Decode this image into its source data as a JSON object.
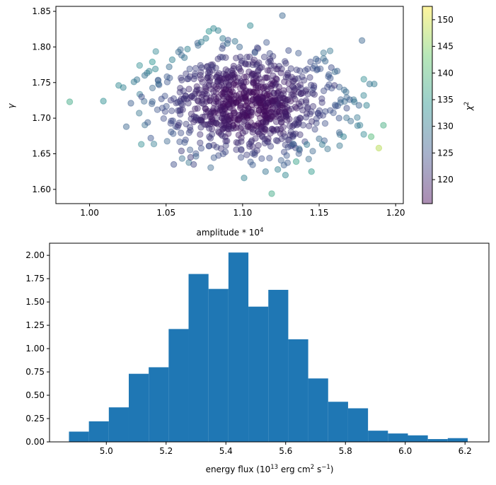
{
  "chart_data": [
    {
      "type": "scatter",
      "title": "",
      "xlabel": "amplitude * 10",
      "xlabel_sup": "4",
      "ylabel": "γ",
      "xlim": [
        0.978,
        1.205
      ],
      "ylim": [
        1.58,
        1.857
      ],
      "xticks": [
        "1.00",
        "1.05",
        "1.10",
        "1.15",
        "1.20"
      ],
      "xtick_values": [
        1.0,
        1.05,
        1.1,
        1.15,
        1.2
      ],
      "yticks": [
        "1.60",
        "1.65",
        "1.70",
        "1.75",
        "1.80",
        "1.85"
      ],
      "ytick_values": [
        1.6,
        1.65,
        1.7,
        1.75,
        1.8,
        1.85
      ],
      "colorbar": {
        "label": "χ",
        "label_sup": "2",
        "range": [
          115.5,
          152.5
        ],
        "ticks": [
          "120",
          "125",
          "130",
          "135",
          "140",
          "145",
          "150"
        ],
        "tick_values": [
          120,
          125,
          130,
          135,
          140,
          145,
          150
        ],
        "colormap": [
          "#440154",
          "#3b528b",
          "#21918c",
          "#5ec962",
          "#fde725"
        ]
      },
      "points": [
        [
          0.987,
          1.723,
          137
        ],
        [
          1.009,
          1.724,
          133
        ],
        [
          1.019,
          1.746,
          132
        ],
        [
          1.022,
          1.743,
          131
        ],
        [
          1.024,
          1.688,
          127
        ],
        [
          1.027,
          1.721,
          126
        ],
        [
          1.029,
          1.751,
          130
        ],
        [
          1.031,
          1.754,
          129
        ],
        [
          1.034,
          1.73,
          124
        ],
        [
          1.036,
          1.76,
          129
        ],
        [
          1.038,
          1.694,
          126
        ],
        [
          1.039,
          1.766,
          131
        ],
        [
          1.04,
          1.672,
          125
        ],
        [
          1.041,
          1.779,
          134
        ],
        [
          1.043,
          1.769,
          132
        ],
        [
          1.045,
          1.748,
          128
        ],
        [
          1.047,
          1.727,
          124
        ],
        [
          1.052,
          1.772,
          128
        ],
        [
          1.054,
          1.782,
          131
        ],
        [
          1.055,
          1.635,
          124
        ],
        [
          1.058,
          1.69,
          121
        ],
        [
          1.06,
          1.654,
          122
        ],
        [
          1.062,
          1.785,
          129
        ],
        [
          1.064,
          1.797,
          131
        ],
        [
          1.066,
          1.645,
          122
        ],
        [
          1.068,
          1.635,
          123
        ],
        [
          1.073,
          1.807,
          130
        ],
        [
          1.076,
          1.812,
          131
        ],
        [
          1.078,
          1.822,
          134
        ],
        [
          1.081,
          1.826,
          132
        ],
        [
          1.084,
          1.823,
          131
        ],
        [
          1.087,
          1.812,
          130
        ],
        [
          1.09,
          1.805,
          128
        ],
        [
          1.095,
          1.808,
          129
        ],
        [
          1.098,
          1.8,
          127
        ],
        [
          1.101,
          1.616,
          131
        ],
        [
          1.105,
          1.83,
          132
        ],
        [
          1.108,
          1.792,
          126
        ],
        [
          1.115,
          1.625,
          129
        ],
        [
          1.119,
          1.594,
          137
        ],
        [
          1.123,
          1.628,
          131
        ],
        [
          1.126,
          1.844,
          127
        ],
        [
          1.128,
          1.62,
          132
        ],
        [
          1.13,
          1.795,
          124
        ],
        [
          1.133,
          1.664,
          127
        ],
        [
          1.135,
          1.639,
          136
        ],
        [
          1.137,
          1.657,
          128
        ],
        [
          1.142,
          1.663,
          130
        ],
        [
          1.145,
          1.625,
          135
        ],
        [
          1.148,
          1.783,
          126
        ],
        [
          1.15,
          1.671,
          128
        ],
        [
          1.152,
          1.663,
          130
        ],
        [
          1.154,
          1.78,
          127
        ],
        [
          1.158,
          1.771,
          124
        ],
        [
          1.16,
          1.746,
          122
        ],
        [
          1.163,
          1.7,
          125
        ],
        [
          1.166,
          1.674,
          131
        ],
        [
          1.168,
          1.714,
          124
        ],
        [
          1.17,
          1.726,
          126
        ],
        [
          1.173,
          1.723,
          129
        ],
        [
          1.176,
          1.718,
          127
        ],
        [
          1.178,
          1.809,
          127
        ],
        [
          1.181,
          1.718,
          131
        ],
        [
          1.183,
          1.748,
          129
        ],
        [
          1.184,
          1.674,
          140
        ],
        [
          1.186,
          1.748,
          130
        ],
        [
          1.189,
          1.658,
          148
        ],
        [
          1.192,
          1.69,
          138
        ]
      ]
    },
    {
      "type": "histogram",
      "title": "",
      "xlabel": "energy flux (10",
      "xlabel_exp1": "13",
      "xlabel_mid": " erg cm",
      "xlabel_exp2": "2",
      "xlabel_mid2": " s",
      "xlabel_exp3": "−1",
      "xlabel_end": ")",
      "ylabel": "",
      "xlim": [
        4.81,
        6.28
      ],
      "ylim": [
        0,
        2.13
      ],
      "xticks": [
        "5.0",
        "5.2",
        "5.4",
        "5.6",
        "5.8",
        "6.0",
        "6.2"
      ],
      "xtick_values": [
        5.0,
        5.2,
        5.4,
        5.6,
        5.8,
        6.0,
        6.2
      ],
      "yticks": [
        "0.00",
        "0.25",
        "0.50",
        "0.75",
        "1.00",
        "1.25",
        "1.50",
        "1.75",
        "2.00"
      ],
      "ytick_values": [
        0.0,
        0.25,
        0.5,
        0.75,
        1.0,
        1.25,
        1.5,
        1.75,
        2.0
      ],
      "bar_color": "#1f77b4",
      "bins": [
        4.875,
        4.9417,
        5.0084,
        5.0751,
        5.1418,
        5.2085,
        5.2752,
        5.3419,
        5.4086,
        5.4753,
        5.542,
        5.6087,
        5.6754,
        5.7421,
        5.8088,
        5.8755,
        5.9422,
        6.0089,
        6.0756,
        6.1423,
        6.209
      ],
      "values": [
        0.11,
        0.22,
        0.37,
        0.73,
        0.8,
        1.21,
        1.8,
        1.64,
        2.03,
        1.45,
        1.63,
        1.1,
        0.68,
        0.43,
        0.36,
        0.12,
        0.09,
        0.07,
        0.03,
        0.04
      ]
    }
  ]
}
